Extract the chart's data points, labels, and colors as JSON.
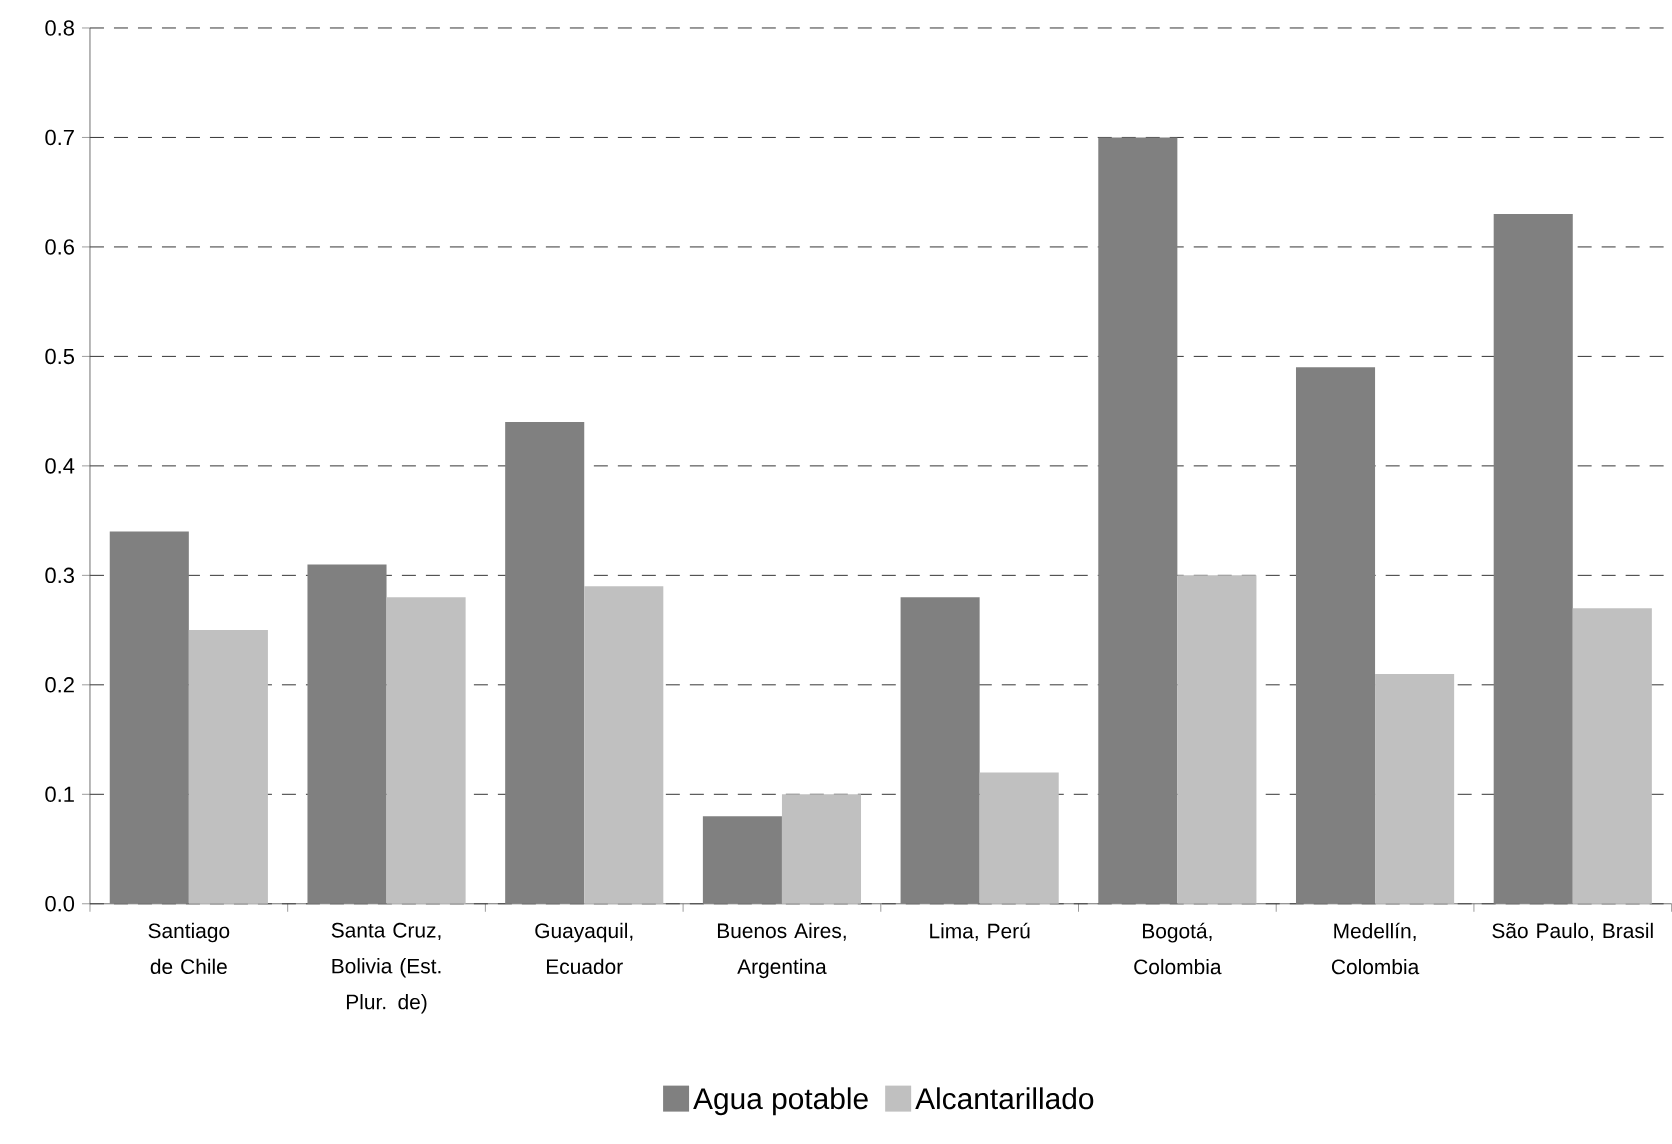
{
  "chart_data": {
    "type": "bar",
    "categories": [
      "Santiago de Chile",
      "Santa Cruz, Bolivia (Est. Plur. de)",
      "Guayaquil, Ecuador",
      "Buenos Aires, Argentina",
      "Lima, Perú",
      "Bogotá, Colombia",
      "Medellín, Colombia",
      "São Paulo, Brasil"
    ],
    "series": [
      {
        "name": "Agua potable",
        "color": "#808080",
        "values": [
          0.34,
          0.31,
          0.44,
          0.08,
          0.28,
          0.7,
          0.49,
          0.63
        ]
      },
      {
        "name": "Alcantarillado",
        "color": "#c0c0c0",
        "values": [
          0.25,
          0.28,
          0.29,
          0.1,
          0.12,
          0.3,
          0.21,
          0.27
        ]
      }
    ],
    "ylim": [
      0,
      0.8
    ],
    "yticks": [
      "0.0",
      0.1,
      0.2,
      0.3,
      0.4,
      0.5,
      0.6,
      0.7,
      0.8
    ],
    "grid": "y",
    "legend": "bottom"
  }
}
